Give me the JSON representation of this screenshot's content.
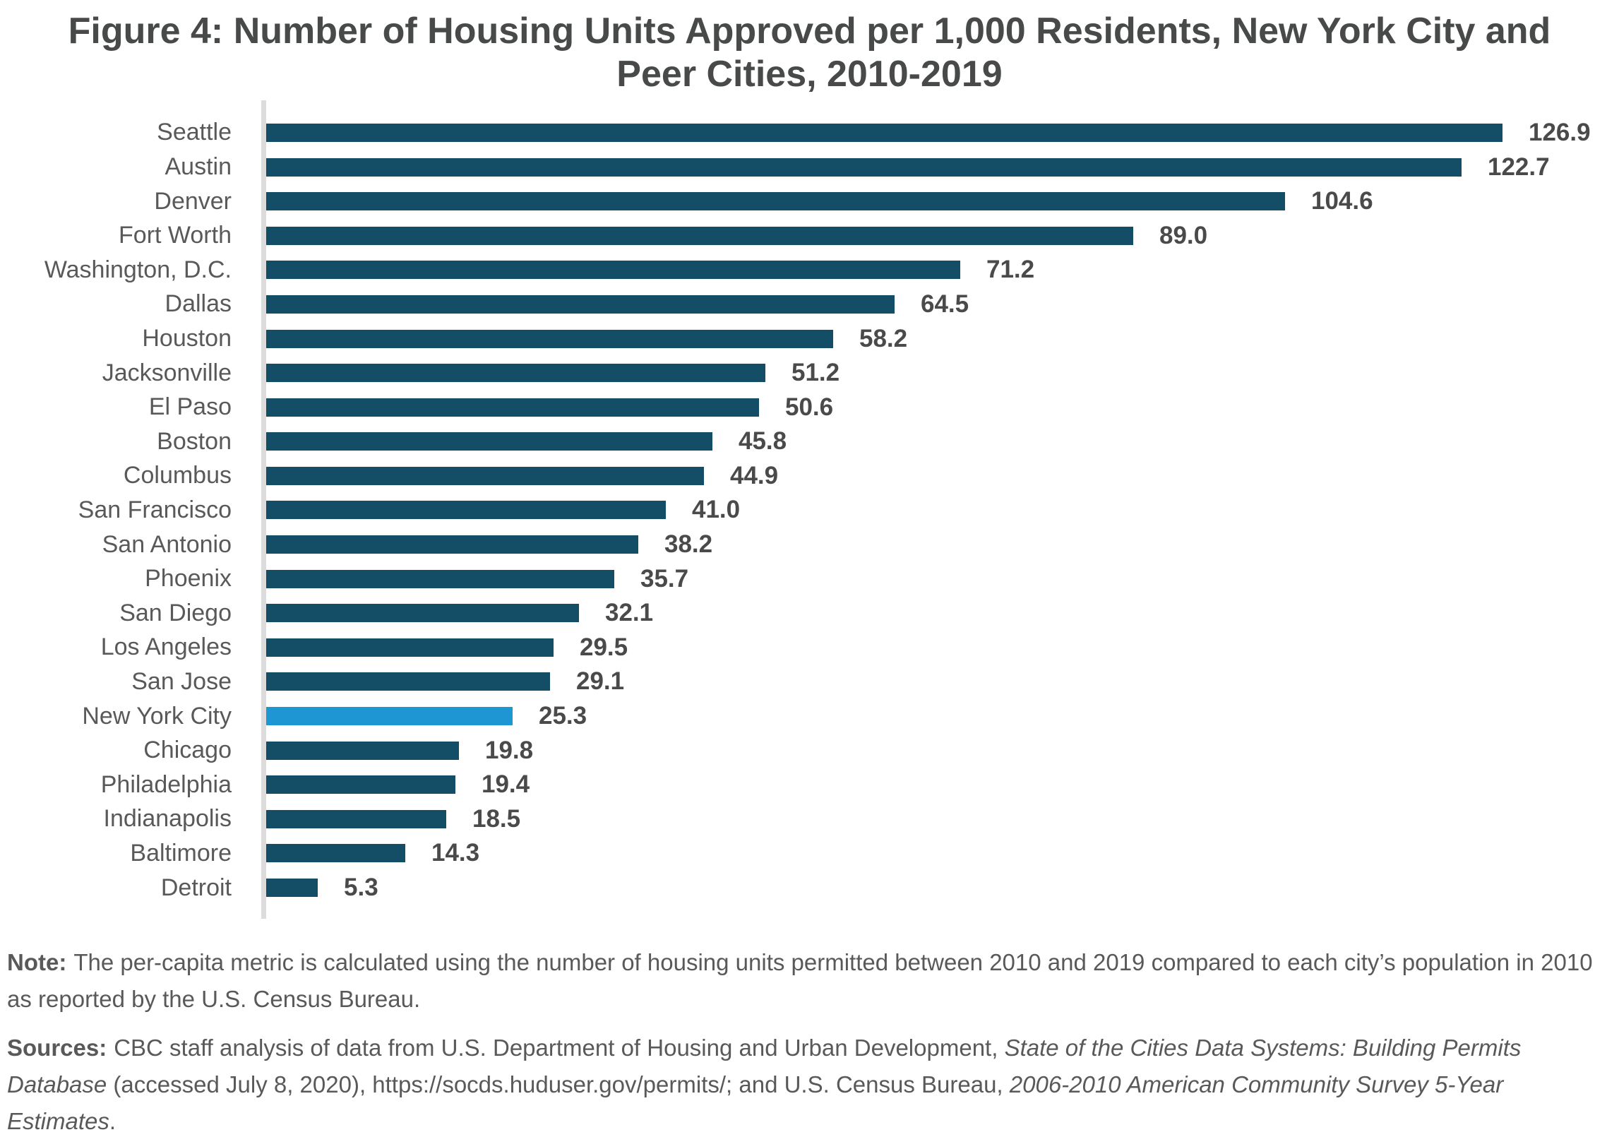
{
  "chart_data": {
    "type": "bar",
    "orientation": "horizontal",
    "title": "Figure 4: Number of Housing Units Approved per 1,000 Residents, New York City and Peer Cities, 2010-2019",
    "categories": [
      "Seattle",
      "Austin",
      "Denver",
      "Fort Worth",
      "Washington, D.C.",
      "Dallas",
      "Houston",
      "Jacksonville",
      "El Paso",
      "Boston",
      "Columbus",
      "San Francisco",
      "San Antonio",
      "Phoenix",
      "San Diego",
      "Los Angeles",
      "San Jose",
      "New York City",
      "Chicago",
      "Philadelphia",
      "Indianapolis",
      "Baltimore",
      "Detroit"
    ],
    "values": [
      126.9,
      122.7,
      104.6,
      89.0,
      71.2,
      64.5,
      58.2,
      51.2,
      50.6,
      45.8,
      44.9,
      41.0,
      38.2,
      35.7,
      32.1,
      29.5,
      29.1,
      25.3,
      19.8,
      19.4,
      18.5,
      14.3,
      5.3
    ],
    "value_labels": [
      "126.9",
      "122.7",
      "104.6",
      "89.0",
      "71.2",
      "64.5",
      "58.2",
      "51.2",
      "50.6",
      "45.8",
      "44.9",
      "41.0",
      "38.2",
      "35.7",
      "32.1",
      "29.5",
      "29.1",
      "25.3",
      "19.8",
      "19.4",
      "18.5",
      "14.3",
      "5.3"
    ],
    "highlight_category": "New York City",
    "xlim": [
      0,
      130
    ],
    "grid": false,
    "legend": "none",
    "colors": {
      "bar": "#134E66",
      "highlight": "#1E96D4",
      "axis": "#DCDCDC",
      "title": "#474A49",
      "category_label": "#595959",
      "value_label": "#4A4A4A"
    }
  },
  "note": {
    "label": "Note:",
    "text": "The per-capita metric is calculated using the number of housing units permitted between 2010 and 2019 compared to each city’s population in 2010 as reported by the U.S. Census Bureau."
  },
  "sources": {
    "label": "Sources:",
    "segments": [
      {
        "text": "CBC staff analysis of data from U.S. Department of Housing and Urban Development, ",
        "style": "normal"
      },
      {
        "text": "State of the Cities Data Systems: Building Permits Database",
        "style": "italic"
      },
      {
        "text": " (accessed July 8, 2020), https://socds.huduser.gov/permits/; and U.S. Census Bureau, ",
        "style": "normal"
      },
      {
        "text": "2006-2010 American Community Survey 5-Year Estimates",
        "style": "italic"
      },
      {
        "text": ".",
        "style": "normal"
      }
    ]
  }
}
